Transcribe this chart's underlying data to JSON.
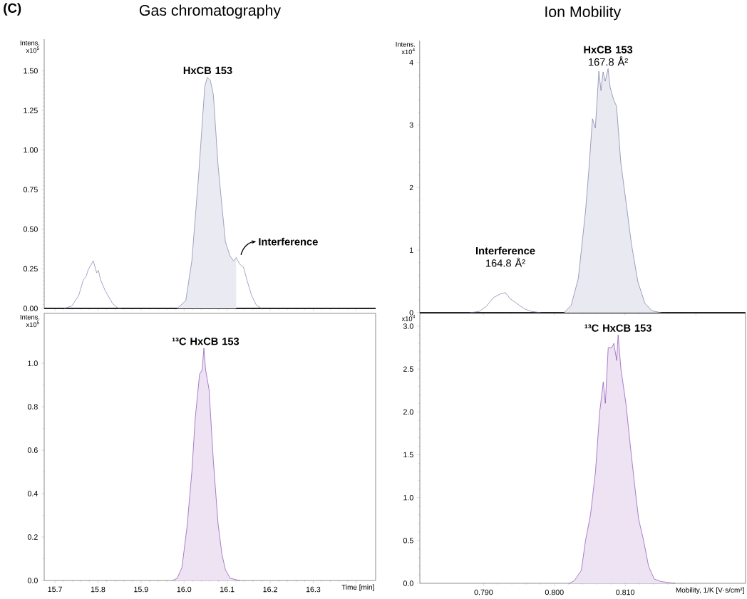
{
  "chart_data": [
    {
      "type": "area",
      "title": "Gas chromatography",
      "ylabel": "Intens. x10$^{5}$",
      "xlim": [
        15.675,
        16.445
      ],
      "ylim": [
        0,
        1.7
      ],
      "tick_labels": "y",
      "xticks": [
        15.7,
        15.8,
        15.9,
        16.0,
        16.1,
        16.2,
        16.3,
        16.4
      ],
      "yticks": [
        {
          "value": 0,
          "label": "0.00"
        },
        {
          "value": 0.25,
          "label": "0.25"
        },
        {
          "value": 0.5,
          "label": "0.50"
        },
        {
          "value": 0.75,
          "label": "0.75"
        },
        {
          "value": 1,
          "label": "1.00"
        },
        {
          "value": 1.25,
          "label": "1.25"
        },
        {
          "value": 1.5,
          "label": "1.50"
        }
      ],
      "series": [
        {
          "color": "#7478a6",
          "x": [
            15.984,
            16.004,
            16.018,
            16.034,
            16.048,
            16.054,
            16.061,
            16.068,
            16.079,
            16.096,
            16.107,
            16.115,
            16.121
          ],
          "values": [
            0,
            0.05,
            0.3,
            0.85,
            1.4,
            1.46,
            1.44,
            1.35,
            0.9,
            0.42,
            0.33,
            0.3,
            0.32
          ]
        },
        {
          "type": "line",
          "color": "#7478a6",
          "x": [
            15.722,
            15.739,
            15.755,
            15.766,
            15.772,
            15.778,
            15.783,
            15.789,
            15.797,
            15.801,
            15.806,
            15.817,
            15.834,
            15.845,
            15.852,
            15.9,
            16.121,
            16.129,
            16.138,
            16.146,
            16.157,
            16.168,
            16.18
          ],
          "values": [
            0,
            0.015,
            0.08,
            0.18,
            0.2,
            0.25,
            0.27,
            0.3,
            0.225,
            0.24,
            0.18,
            0.11,
            0.03,
            0.005,
            0,
            null,
            0.32,
            0.28,
            0.26,
            0.18,
            0.08,
            0.02,
            0
          ]
        }
      ],
      "annotations": [
        "(C)",
        {
          "text": "**HxCB 153**",
          "x": 16.055,
          "y": 1.46
        },
        {
          "text": "**Interference**",
          "x": 16.13,
          "y": 0.32
        }
      ]
    },
    {
      "type": "area",
      "title": "Ion Mobility",
      "ylabel": "Intens. x10$^{4}$",
      "xlim": [
        0.781,
        0.827
      ],
      "ylim": [
        0,
        4.35
      ],
      "tick_labels": "y",
      "xticks": [
        0.79,
        0.8,
        0.81,
        0.82
      ],
      "yticks": [
        0,
        1,
        2,
        3,
        4
      ],
      "series": [
        {
          "color": "#6f73a3",
          "x": [
            0.8014,
            0.8024,
            0.8034,
            0.8044,
            0.8049,
            0.8054,
            0.8058,
            0.8063,
            0.8066,
            0.8069,
            0.8072,
            0.8076,
            0.8079,
            0.8084,
            0.8088,
            0.8094,
            0.8101,
            0.8109,
            0.8118,
            0.8128,
            0.8138,
            0.8151
          ],
          "values": [
            0,
            0.12,
            0.55,
            1.6,
            2.3,
            3.1,
            2.95,
            3.86,
            3.55,
            3.85,
            3.7,
            3.9,
            3.6,
            3.4,
            3.3,
            2.4,
            1.8,
            1.1,
            0.5,
            0.15,
            0.03,
            0
          ]
        },
        {
          "type": "line",
          "color": "#6f73a3",
          "x": [
            0.7881,
            0.7894,
            0.7904,
            0.7914,
            0.7924,
            0.7931,
            0.7938,
            0.7948,
            0.7958,
            0.7968,
            0.7981
          ],
          "values": [
            0,
            0.02,
            0.1,
            0.24,
            0.3,
            0.32,
            0.22,
            0.14,
            0.06,
            0.02,
            0
          ]
        }
      ],
      "annotations": [
        {
          "text": "**HxCB 153** 167.8 Å²",
          "x": 0.8076,
          "y": 3.9
        },
        {
          "text": "**Interference** 164.8 Å²",
          "x": 0.7931,
          "y": 0.32
        }
      ]
    },
    {
      "type": "area",
      "xlabel": "Time [min]",
      "ylabel": "Intens. x10$^{5}$",
      "xlim": [
        15.675,
        16.445
      ],
      "ylim": [
        0,
        1.23
      ],
      "xticks": [
        15.7,
        15.8,
        15.9,
        {
          "value": 16,
          "label": "16.0"
        },
        16.1,
        16.2,
        16.3,
        {
          "value": 16.4,
          "label": null
        }
      ],
      "yticks": [
        {
          "value": 0,
          "label": "0.0"
        },
        {
          "value": 0.2,
          "label": "0.2"
        },
        {
          "value": 0.4,
          "label": "0.4"
        },
        {
          "value": 0.6,
          "label": "0.6"
        },
        {
          "value": 0.8,
          "label": "0.8"
        },
        {
          "value": 1,
          "label": "1.0"
        }
      ],
      "series": [
        {
          "color": "#8445b0",
          "x": [
            15.973,
            15.984,
            15.995,
            16.007,
            16.018,
            16.026,
            16.036,
            16.042,
            16.046,
            16.05,
            16.058,
            16.068,
            16.079,
            16.088,
            16.096,
            16.107,
            16.129
          ],
          "values": [
            0,
            0.01,
            0.06,
            0.25,
            0.5,
            0.75,
            0.95,
            0.97,
            1.07,
            0.97,
            0.88,
            0.55,
            0.26,
            0.12,
            0.05,
            0.01,
            0
          ]
        }
      ],
      "annotations": [
        {
          "text": "**¹³C HxCB 153**",
          "x": 16.05,
          "y": 1.07
        }
      ]
    },
    {
      "type": "area",
      "xlabel": "Mobility, 1/K [V·s/cm²]",
      "ylabel": "x10$^{4}$",
      "xlim": [
        0.781,
        0.827
      ],
      "ylim": [
        0,
        3.15
      ],
      "xticks": [
        {
          "value": 0.79,
          "label": "0.790"
        },
        {
          "value": 0.8,
          "label": "0.800"
        },
        {
          "value": 0.81,
          "label": "0.810"
        },
        {
          "value": 0.82,
          "label": null
        }
      ],
      "yticks": [
        {
          "value": 0,
          "label": "0.0"
        },
        {
          "value": 0.5,
          "label": "0.5"
        },
        {
          "value": 1,
          "label": "1.0"
        },
        {
          "value": 1.5,
          "label": "1.5"
        },
        {
          "value": 2,
          "label": "2.0"
        },
        {
          "value": 2.5,
          "label": "2.5"
        },
        {
          "value": 3,
          "label": "3.0"
        }
      ],
      "series": [
        {
          "color": "#8445b0",
          "x": [
            0.8021,
            0.8028,
            0.8038,
            0.8044,
            0.8051,
            0.8058,
            0.8064,
            0.8069,
            0.8072,
            0.8076,
            0.8081,
            0.8084,
            0.8088,
            0.809,
            0.8094,
            0.8101,
            0.8108,
            0.8114,
            0.8119,
            0.8126,
            0.8133,
            0.8141,
            0.8151,
            0.817
          ],
          "values": [
            0,
            0.03,
            0.15,
            0.5,
            0.8,
            1.3,
            2.0,
            2.35,
            2.1,
            2.75,
            2.75,
            2.8,
            2.6,
            2.9,
            2.5,
            2.1,
            1.55,
            1.1,
            0.75,
            0.5,
            0.2,
            0.05,
            0.02,
            0
          ]
        }
      ],
      "annotations": [
        {
          "text": "**¹³C HxCB 153**",
          "x": 0.809,
          "y": 2.9
        }
      ]
    }
  ]
}
